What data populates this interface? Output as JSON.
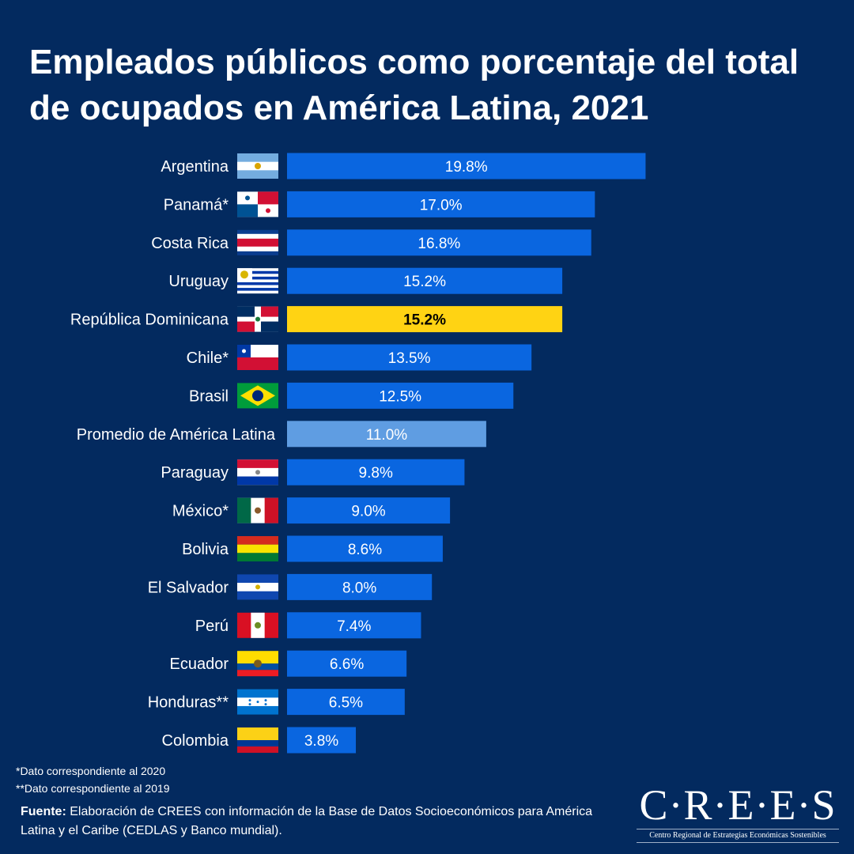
{
  "chart_data": {
    "type": "bar",
    "orientation": "horizontal",
    "title": "Empleados públicos como porcentaje del total de ocupados en América Latina, 2021",
    "title_lines": [
      "Empleados públicos como porcentaje del total",
      "de ocupados en América Latina, 2021"
    ],
    "categories": [
      "Argentina",
      "Panamá*",
      "Costa Rica",
      "Uruguay",
      "República Dominicana",
      "Chile*",
      "Brasil",
      "Promedio de América Latina",
      "Paraguay",
      "México*",
      "Bolivia",
      "El Salvador",
      "Perú",
      "Ecuador",
      "Honduras**",
      "Colombia"
    ],
    "flags": [
      "AR",
      "PA",
      "CR",
      "UY",
      "DO",
      "CL",
      "BR",
      "",
      "PY",
      "MX",
      "BO",
      "SV",
      "PE",
      "EC",
      "HN",
      "CO"
    ],
    "values": [
      19.8,
      17.0,
      16.8,
      15.2,
      15.2,
      13.5,
      12.5,
      11.0,
      9.8,
      9.0,
      8.6,
      8.0,
      7.4,
      6.6,
      6.5,
      3.8
    ],
    "data_labels": [
      "19.8%",
      "17.0%",
      "16.8%",
      "15.2%",
      "15.2%",
      "13.5%",
      "12.5%",
      "11.0%",
      "9.8%",
      "9.0%",
      "8.6%",
      "8.0%",
      "7.4%",
      "6.6%",
      "6.5%",
      "3.8%"
    ],
    "highlight": {
      "República Dominicana": "#ffd313",
      "Promedio de América Latina": "#5f9de2"
    },
    "bar_color": "#0a66e0",
    "background": "#032a5f",
    "grid": false,
    "xlim": [
      0,
      20
    ]
  },
  "footnotes": [
    "*Dato correspondiente al 2020",
    "**Dato correspondiente al 2019"
  ],
  "source": {
    "label": "Fuente:",
    "text": " Elaboración de CREES con información de la Base de Datos Socioeconómicos para América Latina y el Caribe (CEDLAS y Banco mundial)."
  },
  "logo": {
    "name": "C·R·E·E·S",
    "subtitle": "Centro Regional de Estrategias Económicas Sostenibles"
  }
}
